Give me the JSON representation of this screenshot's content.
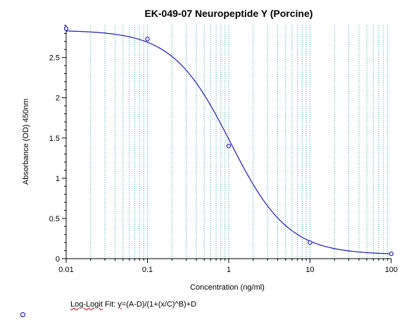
{
  "colors": {
    "background": "#ffffff",
    "grid": "#2aa3a3",
    "curve": "#1b1bb3",
    "points": "#0000aa",
    "axis": "#000000"
  },
  "footer": {
    "fit_prefix": "Log-Logit",
    "fit_mid": " Fit: ",
    "fit_y": "y",
    "fit_formula": "=(A-D)/(1+(x/C)^B)+D"
  },
  "chart_data": {
    "type": "scatter",
    "title": "EK-049-07 Neuropeptide Y (Porcine)",
    "xlabel": "Concentration (ng/ml)",
    "ylabel": "Absorbance (OD) 450nm",
    "xscale": "log",
    "xlim": [
      0.01,
      100
    ],
    "ylim": [
      0,
      2.9
    ],
    "x_ticks": [
      "0.01",
      "0.1",
      "1",
      "10",
      "100"
    ],
    "y_ticks": [
      "0",
      "0.5",
      "1",
      "1.5",
      "2",
      "2.5"
    ],
    "grid": "vertical log minor lines, dotted",
    "series": [
      {
        "kind": "points",
        "x": [
          0.01,
          0.1,
          1,
          10,
          100
        ],
        "y": [
          2.86,
          2.73,
          1.4,
          0.2,
          0.06
        ]
      },
      {
        "kind": "fit-curve",
        "model": "4PL log-logit",
        "A": 2.84,
        "B": 1.22,
        "C": 1.05,
        "D": 0.05
      }
    ]
  }
}
